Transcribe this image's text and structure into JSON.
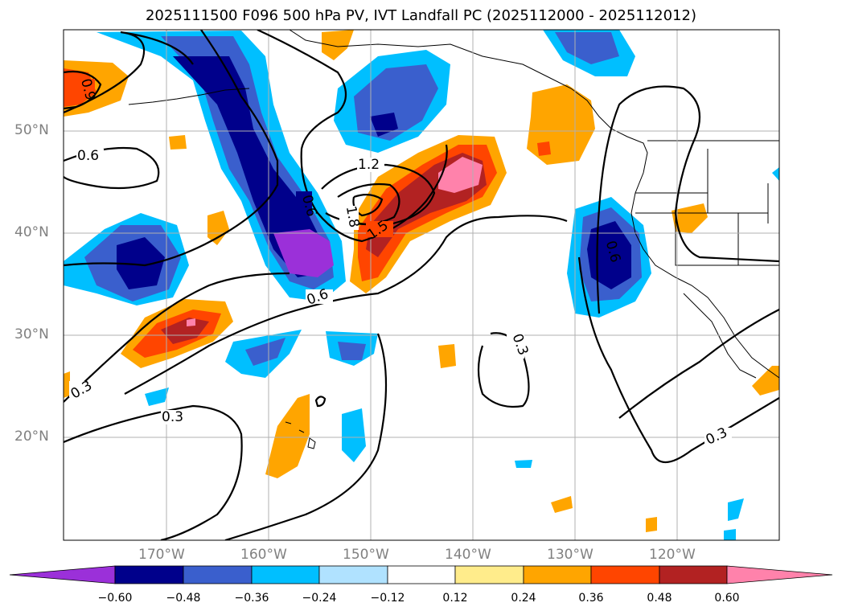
{
  "title": "2025111500 F096 500 hPa PV, IVT Landfall PC (2025112000 - 2025112012)",
  "lat_labels": [
    "50°N",
    "40°N",
    "30°N",
    "20°N"
  ],
  "lon_labels": [
    "170°W",
    "160°W",
    "150°W",
    "140°W",
    "130°W",
    "120°W"
  ],
  "contour_labels": [
    "0.9",
    "0.6",
    "0.6",
    "1.2",
    "1.8",
    "1.5",
    "0.6",
    "0.6",
    "0.3",
    "0.3",
    "0.3",
    "0.3"
  ],
  "colorbar": {
    "ticks": [
      "−0.60",
      "−0.48",
      "−0.36",
      "−0.24",
      "−0.12",
      "0.12",
      "0.24",
      "0.36",
      "0.48",
      "0.60"
    ],
    "colors": [
      "#9b30d9",
      "#00008b",
      "#3a5fcd",
      "#00bfff",
      "#b0e2ff",
      "#ffffff",
      "#ffec8b",
      "#ffa500",
      "#ff4500",
      "#b22222",
      "#ff82ab"
    ]
  },
  "map_extent": {
    "lon_min": -180,
    "lon_max": -110,
    "lat_min": 10,
    "lat_max": 60
  }
}
